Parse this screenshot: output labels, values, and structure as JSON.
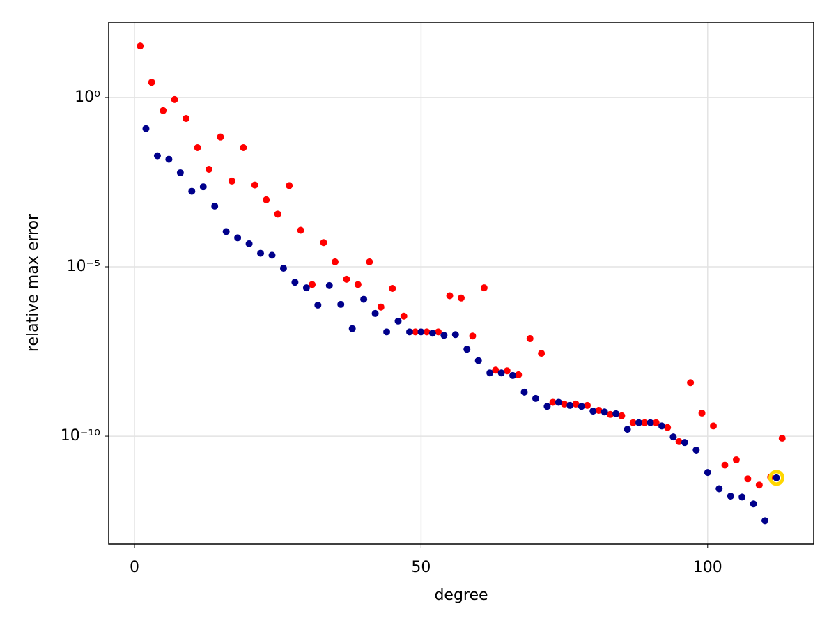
{
  "chart_data": {
    "type": "scatter",
    "x_label": "degree",
    "y_label": "relative max error",
    "xlim": [
      -4.5,
      118.5
    ],
    "xticks": [
      0,
      50,
      100
    ],
    "ylim": [
      6.5e-14,
      166
    ],
    "log_y": true,
    "yticks": [
      {
        "value": 1,
        "label": "10⁰"
      },
      {
        "value": 1e-05,
        "label": "10⁻⁵"
      },
      {
        "value": 1e-10,
        "label": "10⁻¹⁰"
      }
    ],
    "grid": true,
    "series": [
      {
        "color": "#ff0000",
        "marker": "dot",
        "x": [
          1,
          3,
          5,
          7,
          9,
          11,
          13,
          15,
          17,
          19,
          21,
          23,
          25,
          27,
          29,
          31,
          33,
          35,
          37,
          39,
          41,
          43,
          45,
          47,
          49,
          51,
          53,
          55,
          57,
          59,
          61,
          63,
          65,
          67,
          69,
          71,
          73,
          75,
          77,
          79,
          81,
          83,
          85,
          87,
          89,
          91,
          93,
          95,
          97,
          99,
          101,
          103,
          105,
          107,
          109,
          111,
          113
        ],
        "values": [
          33,
          2.8,
          0.41,
          0.87,
          0.24,
          0.033,
          0.0076,
          0.068,
          0.0034,
          0.033,
          0.0026,
          0.00095,
          0.00036,
          0.0025,
          0.00012,
          3e-06,
          5.2e-05,
          1.4e-05,
          4.3e-06,
          3e-06,
          1.4e-05,
          6.5e-07,
          2.3e-06,
          3.5e-07,
          1.2e-07,
          1.2e-07,
          1.2e-07,
          1.4e-06,
          1.2e-06,
          9.1e-08,
          2.4e-06,
          8.9e-09,
          8.5e-09,
          6.5e-09,
          7.6e-08,
          2.8e-08,
          1e-09,
          8.9e-10,
          8.9e-10,
          8.1e-10,
          5.8e-10,
          4.4e-10,
          4e-10,
          2.5e-10,
          2.5e-10,
          2.5e-10,
          1.8e-10,
          6.9e-11,
          3.8e-09,
          4.8e-10,
          2e-10,
          1.4e-11,
          2e-11,
          5.5e-12,
          3.6e-12,
          6.2e-12,
          8.7e-11
        ]
      },
      {
        "color": "#ffd700",
        "marker": "ring",
        "x": [
          112
        ],
        "values": [
          5.9e-12
        ]
      },
      {
        "color": "#00008b",
        "marker": "dot",
        "x": [
          2,
          4,
          6,
          8,
          10,
          12,
          14,
          16,
          18,
          20,
          22,
          24,
          26,
          28,
          30,
          32,
          34,
          36,
          38,
          40,
          42,
          44,
          46,
          48,
          50,
          52,
          54,
          56,
          58,
          60,
          62,
          64,
          66,
          68,
          70,
          72,
          74,
          76,
          78,
          80,
          82,
          84,
          86,
          88,
          90,
          92,
          94,
          96,
          98,
          100,
          102,
          104,
          106,
          108,
          110,
          112
        ],
        "values": [
          0.12,
          0.019,
          0.015,
          0.006,
          0.0017,
          0.0023,
          0.00062,
          0.00011,
          7.2e-05,
          4.8e-05,
          2.5e-05,
          2.2e-05,
          9.1e-06,
          3.5e-06,
          2.4e-06,
          7.4e-07,
          2.8e-06,
          7.8e-07,
          1.5e-07,
          1.1e-06,
          4.2e-07,
          1.2e-07,
          2.5e-07,
          1.2e-07,
          1.2e-07,
          1.1e-07,
          9.5e-08,
          1e-07,
          3.7e-08,
          1.7e-08,
          7.4e-09,
          7.4e-09,
          6.2e-09,
          2e-09,
          1.3e-09,
          7.6e-10,
          1e-09,
          8.1e-10,
          7.6e-10,
          5.5e-10,
          5.2e-10,
          4.6e-10,
          1.6e-10,
          2.5e-10,
          2.5e-10,
          2e-10,
          9.5e-11,
          6.5e-11,
          3.9e-11,
          8.5e-12,
          2.8e-12,
          1.7e-12,
          1.6e-12,
          1e-12,
          3.2e-13,
          5.9e-12
        ]
      }
    ]
  }
}
